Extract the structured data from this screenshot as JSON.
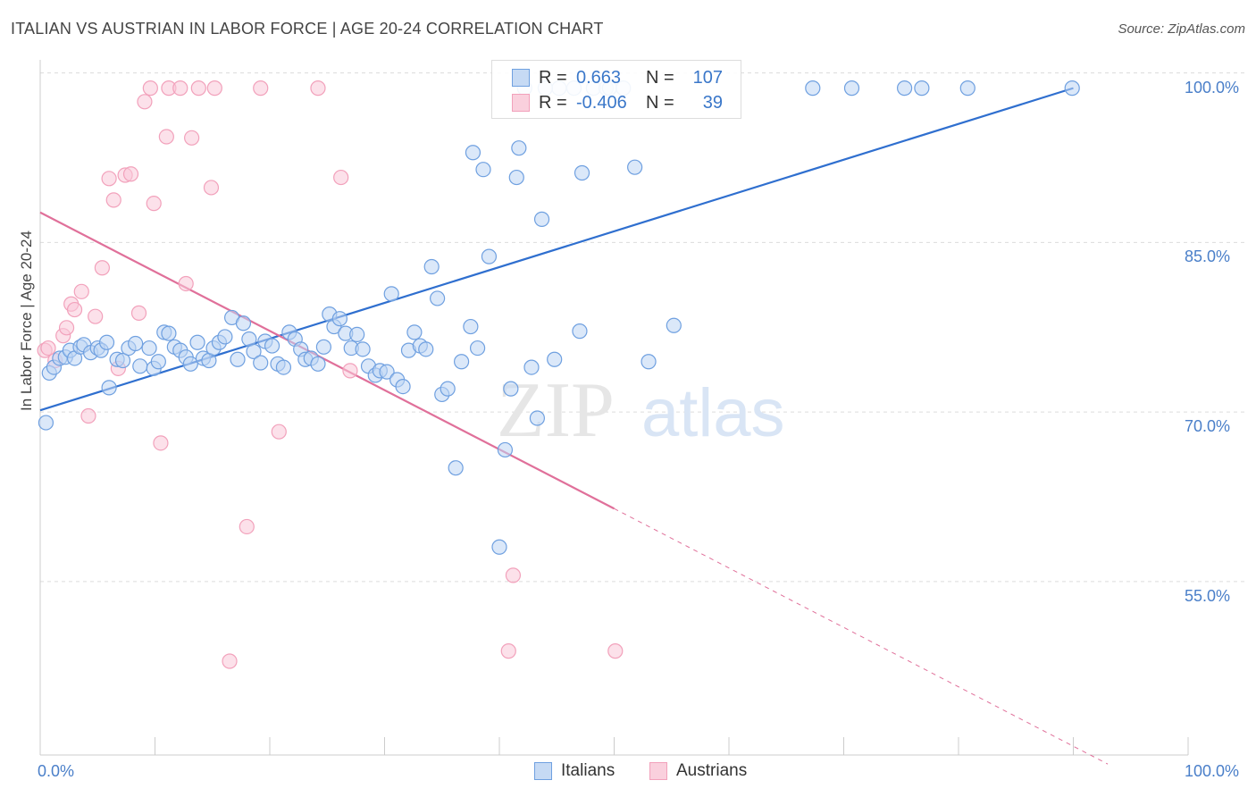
{
  "title": "ITALIAN VS AUSTRIAN IN LABOR FORCE | AGE 20-24 CORRELATION CHART",
  "source": "Source: ZipAtlas.com",
  "watermark": {
    "zip": "ZIP",
    "atlas": "atlas"
  },
  "legend": {
    "rows": [
      {
        "r_label": "R =",
        "r_value": "0.663",
        "n_label": "N =",
        "n_value": "107"
      },
      {
        "r_label": "R =",
        "r_value": "-0.406",
        "n_label": "N =",
        "n_value": "39"
      }
    ]
  },
  "bottom_legend": {
    "italians": "Italians",
    "austrians": "Austrians"
  },
  "x_tick_left": "0.0%",
  "x_tick_right": "100.0%",
  "colors": {
    "italians": "#6fa0e0",
    "austrians": "#f2a1bb",
    "italian_line": "#2f6fcf",
    "austrian_line": "#e0709a",
    "tick": "#4a7fc9"
  },
  "chart_data": {
    "type": "scatter",
    "xlabel": "",
    "ylabel": "In Labor Force | Age 20-24",
    "xlim": [
      0,
      100
    ],
    "ylim": [
      41,
      102.5
    ],
    "y_ticks": [
      {
        "value": 100,
        "label": "100.0%"
      },
      {
        "value": 85,
        "label": "85.0%"
      },
      {
        "value": 70,
        "label": "70.0%"
      },
      {
        "value": 55,
        "label": "55.0%"
      }
    ],
    "grid": "dashed horizontal",
    "legend_position": "top-center",
    "series": [
      {
        "name": "Italians",
        "r": 0.663,
        "n": 107,
        "trend": {
          "x": [
            0,
            90
          ],
          "y": [
            71.5,
            100.0
          ]
        },
        "points": [
          [
            0.5,
            70.4
          ],
          [
            0.8,
            74.8
          ],
          [
            1.2,
            75.3
          ],
          [
            1.7,
            76.1
          ],
          [
            2.2,
            76.2
          ],
          [
            2.6,
            76.8
          ],
          [
            3.0,
            76.1
          ],
          [
            3.5,
            77.1
          ],
          [
            3.8,
            77.3
          ],
          [
            4.4,
            76.6
          ],
          [
            5.0,
            77.0
          ],
          [
            5.3,
            76.8
          ],
          [
            5.8,
            77.5
          ],
          [
            6.0,
            73.5
          ],
          [
            6.7,
            76.0
          ],
          [
            7.2,
            75.9
          ],
          [
            7.7,
            77.0
          ],
          [
            8.3,
            77.4
          ],
          [
            8.7,
            75.4
          ],
          [
            9.5,
            77.0
          ],
          [
            9.9,
            75.2
          ],
          [
            10.3,
            75.8
          ],
          [
            10.8,
            78.4
          ],
          [
            11.2,
            78.3
          ],
          [
            11.7,
            77.1
          ],
          [
            12.2,
            76.8
          ],
          [
            12.7,
            76.2
          ],
          [
            13.1,
            75.6
          ],
          [
            13.7,
            77.5
          ],
          [
            14.2,
            76.1
          ],
          [
            14.7,
            75.9
          ],
          [
            15.1,
            77.0
          ],
          [
            15.6,
            77.5
          ],
          [
            16.1,
            78.0
          ],
          [
            16.7,
            79.7
          ],
          [
            17.2,
            76.0
          ],
          [
            17.7,
            79.2
          ],
          [
            18.2,
            77.8
          ],
          [
            18.6,
            76.7
          ],
          [
            19.2,
            75.7
          ],
          [
            19.6,
            77.6
          ],
          [
            20.2,
            77.2
          ],
          [
            20.7,
            75.6
          ],
          [
            21.2,
            75.3
          ],
          [
            21.7,
            78.4
          ],
          [
            22.2,
            77.8
          ],
          [
            22.7,
            76.9
          ],
          [
            23.1,
            76.0
          ],
          [
            23.6,
            76.1
          ],
          [
            24.2,
            75.6
          ],
          [
            24.7,
            77.1
          ],
          [
            25.2,
            80.0
          ],
          [
            25.6,
            78.9
          ],
          [
            26.1,
            79.6
          ],
          [
            26.6,
            78.3
          ],
          [
            27.1,
            77.0
          ],
          [
            27.6,
            78.2
          ],
          [
            28.1,
            76.9
          ],
          [
            28.6,
            75.4
          ],
          [
            29.2,
            74.6
          ],
          [
            29.6,
            75.0
          ],
          [
            30.2,
            74.9
          ],
          [
            30.6,
            81.8
          ],
          [
            31.1,
            74.2
          ],
          [
            31.6,
            73.6
          ],
          [
            32.1,
            76.8
          ],
          [
            32.6,
            78.4
          ],
          [
            33.1,
            77.2
          ],
          [
            33.6,
            76.9
          ],
          [
            34.1,
            84.2
          ],
          [
            34.6,
            81.4
          ],
          [
            35.0,
            72.9
          ],
          [
            35.5,
            73.4
          ],
          [
            36.2,
            66.4
          ],
          [
            36.7,
            75.8
          ],
          [
            37.7,
            94.3
          ],
          [
            37.5,
            78.9
          ],
          [
            38.1,
            77.0
          ],
          [
            38.6,
            92.8
          ],
          [
            39.1,
            85.1
          ],
          [
            40.0,
            59.4
          ],
          [
            40.5,
            68.0
          ],
          [
            41.0,
            73.4
          ],
          [
            41.5,
            92.1
          ],
          [
            41.7,
            94.7
          ],
          [
            42.8,
            75.3
          ],
          [
            43.3,
            70.8
          ],
          [
            43.7,
            88.4
          ],
          [
            44.8,
            76.0
          ],
          [
            45.2,
            100.0
          ],
          [
            46.5,
            100.0
          ],
          [
            47.2,
            92.5
          ],
          [
            47.0,
            78.5
          ],
          [
            48.2,
            100.0
          ],
          [
            49.3,
            100.0
          ],
          [
            49.6,
            100.0
          ],
          [
            50.8,
            100.0
          ],
          [
            51.8,
            93.0
          ],
          [
            53.0,
            75.8
          ],
          [
            55.2,
            79.0
          ],
          [
            67.3,
            100.0
          ],
          [
            70.7,
            100.0
          ],
          [
            75.3,
            100.0
          ],
          [
            76.8,
            100.0
          ],
          [
            80.8,
            100.0
          ],
          [
            89.9,
            100.0
          ],
          [
            44.0,
            100.0
          ],
          [
            42.2,
            100.0
          ]
        ]
      },
      {
        "name": "Austrians",
        "r": -0.406,
        "n": 39,
        "trend": {
          "x": [
            0,
            50
          ],
          "y": [
            89.0,
            62.8
          ]
        },
        "trend_dashed": {
          "x": [
            50,
            93
          ],
          "y": [
            62.8,
            40.2
          ]
        },
        "points": [
          [
            0.4,
            76.8
          ],
          [
            0.7,
            77.0
          ],
          [
            1.3,
            75.9
          ],
          [
            2.0,
            78.1
          ],
          [
            2.3,
            78.8
          ],
          [
            2.7,
            80.9
          ],
          [
            3.0,
            80.4
          ],
          [
            3.6,
            82.0
          ],
          [
            4.2,
            71.0
          ],
          [
            4.8,
            79.8
          ],
          [
            5.4,
            84.1
          ],
          [
            6.0,
            92.0
          ],
          [
            6.4,
            90.1
          ],
          [
            6.8,
            75.2
          ],
          [
            7.4,
            92.3
          ],
          [
            7.9,
            92.4
          ],
          [
            8.6,
            80.1
          ],
          [
            9.1,
            98.8
          ],
          [
            9.6,
            100.0
          ],
          [
            9.9,
            89.8
          ],
          [
            10.5,
            68.6
          ],
          [
            11.0,
            95.7
          ],
          [
            11.2,
            100.0
          ],
          [
            12.2,
            100.0
          ],
          [
            12.7,
            82.7
          ],
          [
            13.2,
            95.6
          ],
          [
            13.8,
            100.0
          ],
          [
            14.9,
            91.2
          ],
          [
            15.2,
            100.0
          ],
          [
            16.5,
            49.3
          ],
          [
            18.0,
            61.2
          ],
          [
            19.2,
            100.0
          ],
          [
            20.8,
            69.6
          ],
          [
            24.2,
            100.0
          ],
          [
            26.2,
            92.1
          ],
          [
            27.0,
            75.0
          ],
          [
            40.8,
            50.2
          ],
          [
            41.2,
            56.9
          ],
          [
            50.1,
            50.2
          ]
        ]
      }
    ]
  }
}
